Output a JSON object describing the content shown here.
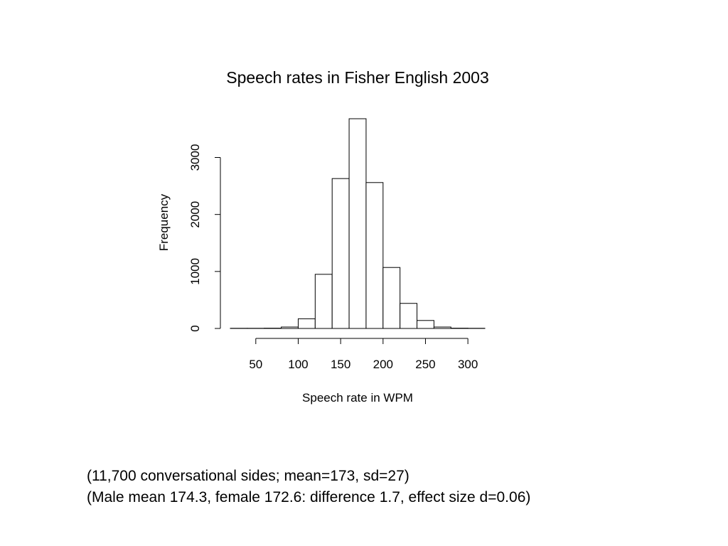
{
  "chart_data": {
    "type": "histogram",
    "title": "Speech rates in Fisher English 2003",
    "xlabel": "Speech rate in WPM",
    "ylabel": "Frequency",
    "bin_width": 20,
    "bins": [
      {
        "start": 20,
        "end": 40,
        "value": 3
      },
      {
        "start": 40,
        "end": 60,
        "value": 3
      },
      {
        "start": 60,
        "end": 80,
        "value": 5
      },
      {
        "start": 80,
        "end": 100,
        "value": 25
      },
      {
        "start": 100,
        "end": 120,
        "value": 170
      },
      {
        "start": 120,
        "end": 140,
        "value": 950
      },
      {
        "start": 140,
        "end": 160,
        "value": 2630
      },
      {
        "start": 160,
        "end": 180,
        "value": 3680
      },
      {
        "start": 180,
        "end": 200,
        "value": 2560
      },
      {
        "start": 200,
        "end": 220,
        "value": 1070
      },
      {
        "start": 220,
        "end": 240,
        "value": 440
      },
      {
        "start": 240,
        "end": 260,
        "value": 140
      },
      {
        "start": 260,
        "end": 280,
        "value": 25
      },
      {
        "start": 280,
        "end": 300,
        "value": 5
      },
      {
        "start": 300,
        "end": 320,
        "value": 3
      }
    ],
    "xlim": [
      20,
      320
    ],
    "ylim": [
      0,
      3680
    ],
    "x_ticks": [
      "50",
      "100",
      "150",
      "200",
      "250",
      "300"
    ],
    "y_ticks": [
      "0",
      "1000",
      "2000",
      "3000"
    ],
    "x_tick_values": [
      50,
      100,
      150,
      200,
      250,
      300
    ],
    "y_tick_values": [
      0,
      1000,
      2000,
      3000
    ],
    "grid": false,
    "legend": "none"
  },
  "caption": {
    "line1": "(11,700 conversational sides; mean=173, sd=27)",
    "line2": "(Male mean 174.3, female 172.6: difference 1.7, effect size d=0.06)"
  }
}
